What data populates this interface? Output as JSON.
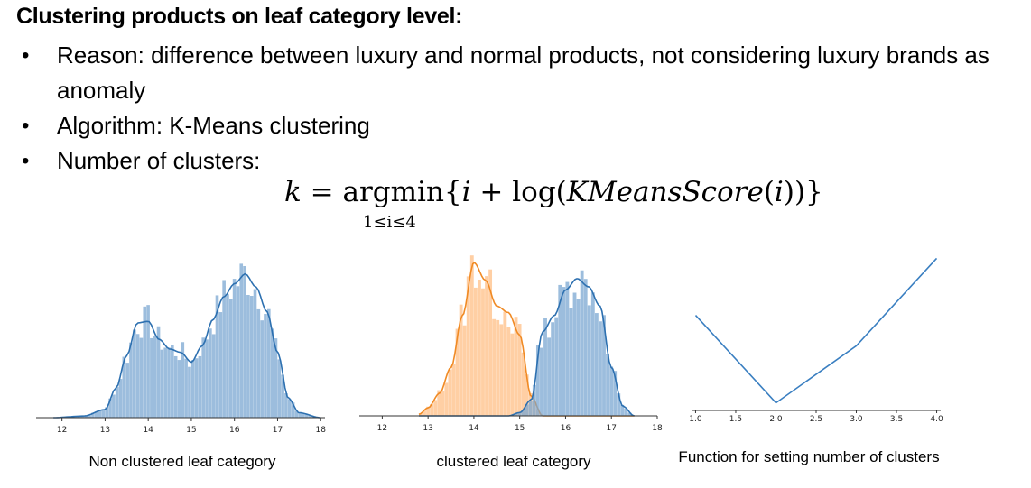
{
  "title": "Clustering products on leaf category level:",
  "bullets": [
    "Reason: difference between luxury and normal products, not considering luxury brands as anomaly",
    "Algorithm: K-Means clustering",
    "Number of clusters:"
  ],
  "bullet_symbol": "•",
  "formula": {
    "lhs": "k",
    "eq": "=",
    "op": "argmin",
    "body_open": "{",
    "body_i": "i",
    "body_plus": " + log(",
    "body_fn": "KMeansScore",
    "body_arg_open": "(",
    "body_arg": "i",
    "body_close": "))}",
    "subscript": "1≤i≤4"
  },
  "colors": {
    "blue": "#7ba7d1",
    "blue_line": "#2d70b0",
    "orange": "#ffbf85",
    "orange_line": "#f08a24",
    "line": "#3a7fc1"
  },
  "captions": [
    "Non clustered leaf category",
    "clustered leaf category",
    "Function for setting number of clusters"
  ],
  "chart_data": [
    {
      "type": "histogram",
      "title": "",
      "x": [
        11.8,
        12.5,
        13.0,
        13.25,
        13.5,
        13.75,
        14.0,
        14.25,
        14.5,
        14.75,
        15.0,
        15.25,
        15.5,
        15.75,
        16.0,
        16.25,
        16.5,
        16.75,
        17.0,
        17.25,
        17.5,
        18.0
      ],
      "series": [
        {
          "values": [
            0.0,
            0.01,
            0.05,
            0.18,
            0.38,
            0.58,
            0.59,
            0.48,
            0.42,
            0.4,
            0.34,
            0.44,
            0.6,
            0.74,
            0.82,
            0.88,
            0.8,
            0.65,
            0.4,
            0.12,
            0.03,
            0.0
          ]
        }
      ],
      "xticks": [
        "12",
        "13",
        "14",
        "15",
        "16",
        "17",
        "18"
      ],
      "xlim": [
        11.4,
        18.1
      ],
      "ylim": [
        0,
        1
      ]
    },
    {
      "type": "histogram",
      "title": "",
      "x": [
        12.8,
        13.0,
        13.25,
        13.5,
        13.75,
        14.0,
        14.25,
        14.5,
        14.75,
        15.0,
        15.25,
        15.5,
        15.75,
        16.0,
        16.25,
        16.5,
        16.75,
        17.0,
        17.25,
        17.5
      ],
      "series": [
        {
          "values": [
            0.01,
            0.05,
            0.14,
            0.3,
            0.62,
            0.95,
            0.84,
            0.68,
            0.64,
            0.5,
            0.12,
            0.0,
            0.0,
            0.0,
            0.0,
            0.0,
            0.0,
            0.0,
            0.0,
            0.0
          ]
        },
        {
          "values": [
            0.0,
            0.0,
            0.0,
            0.0,
            0.0,
            0.0,
            0.0,
            0.0,
            0.0,
            0.02,
            0.1,
            0.52,
            0.62,
            0.78,
            0.85,
            0.8,
            0.68,
            0.3,
            0.06,
            0.0
          ]
        }
      ],
      "xticks": [
        "12",
        "13",
        "14",
        "15",
        "16",
        "17",
        "18"
      ],
      "xlim": [
        11.5,
        18.0
      ],
      "ylim": [
        0,
        1
      ]
    },
    {
      "type": "line",
      "title": "",
      "x": [
        1.0,
        2.0,
        3.0,
        4.0
      ],
      "series": [
        {
          "values": [
            1.15,
            0.0,
            0.75,
            1.9
          ]
        }
      ],
      "xticks": [
        "1.0",
        "1.5",
        "2.0",
        "2.5",
        "3.0",
        "3.5",
        "4.0"
      ],
      "xlim": [
        0.95,
        4.05
      ],
      "ylim": [
        -0.1,
        2.0
      ]
    }
  ]
}
